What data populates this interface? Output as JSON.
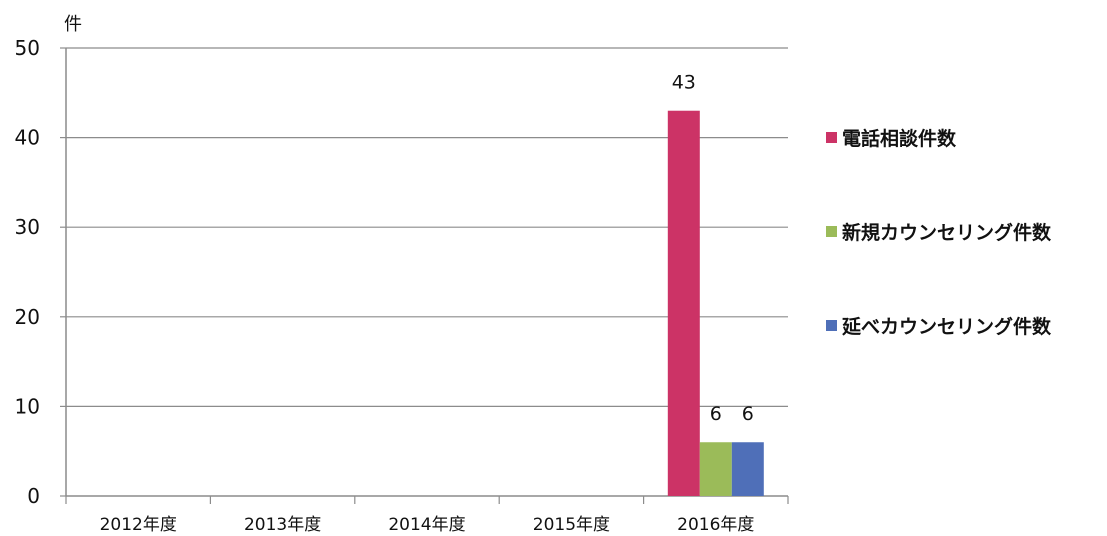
{
  "chart_data": {
    "type": "bar",
    "ylabel": "件",
    "ylim": [
      0,
      50
    ],
    "yticks": [
      0,
      10,
      20,
      30,
      40,
      50
    ],
    "grid": true,
    "legend_position": "right",
    "categories": [
      "2012年度",
      "2013年度",
      "2014年度",
      "2015年度",
      "2016年度"
    ],
    "series": [
      {
        "name": "電話相談件数",
        "color": "#cc3366",
        "values": [
          0,
          0,
          0,
          0,
          43
        ]
      },
      {
        "name": "新規カウンセリング件数",
        "color": "#9bbb59",
        "values": [
          0,
          0,
          0,
          0,
          6
        ]
      },
      {
        "name": "延べカウンセリング件数",
        "color": "#4f6fb8",
        "values": [
          0,
          0,
          0,
          0,
          6
        ]
      }
    ],
    "data_labels": [
      {
        "series": 0,
        "category": 4,
        "text": "43"
      },
      {
        "series": 1,
        "category": 4,
        "text": "6"
      },
      {
        "series": 2,
        "category": 4,
        "text": "6"
      }
    ]
  }
}
